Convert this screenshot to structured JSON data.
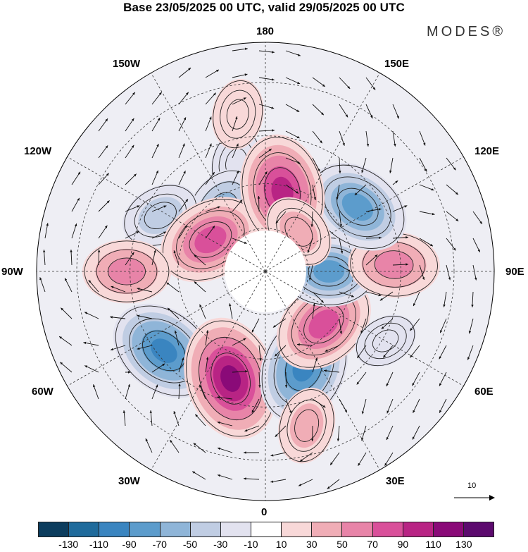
{
  "title": "Base 23/05/2025 00 UTC, valid 29/05/2025 00 UTC",
  "brand": "MODES®",
  "longitude_labels": {
    "lon_180": "180",
    "lon_150e": "150E",
    "lon_120e": "120E",
    "lon_90e": "90E",
    "lon_60e": "60E",
    "lon_30e": "30E",
    "lon_0": "0",
    "lon_30w": "30W",
    "lon_60w": "60W",
    "lon_90w": "90W",
    "lon_120w": "120W",
    "lon_150w": "150W"
  },
  "reference_vector_label": "10",
  "colorbar": {
    "colors": [
      "#0c3d5e",
      "#1f6b9c",
      "#3a85c0",
      "#5c9ccc",
      "#8fb5d8",
      "#c0cde3",
      "#e2e2ef",
      "#ffffff",
      "#f8d8d8",
      "#f0adb6",
      "#e884a8",
      "#d9509a",
      "#b82484",
      "#8a0a78",
      "#5c0a6e"
    ],
    "tick_labels": [
      "-130",
      "-110",
      "-90",
      "-70",
      "-50",
      "-30",
      "-10",
      "10",
      "30",
      "50",
      "70",
      "90",
      "110",
      "130"
    ]
  },
  "anomaly_centers": [
    {
      "lon": -165,
      "lat": 52,
      "value": -20
    },
    {
      "lon": -145,
      "lat": 64,
      "value": -55
    },
    {
      "lon": -118,
      "lat": 50,
      "value": -40
    },
    {
      "lon": -120,
      "lat": 68,
      "value": 85
    },
    {
      "lon": -90,
      "lat": 44,
      "value": 55
    },
    {
      "lon": -52,
      "lat": 47,
      "value": -95
    },
    {
      "lon": -18,
      "lat": 52,
      "value": 115
    },
    {
      "lon": 22,
      "lat": 55,
      "value": -100
    },
    {
      "lon": 15,
      "lat": 38,
      "value": 35
    },
    {
      "lon": 48,
      "lat": 63,
      "value": 85
    },
    {
      "lon": 90,
      "lat": 68,
      "value": -70
    },
    {
      "lon": 93,
      "lat": 47,
      "value": 60
    },
    {
      "lon": 125,
      "lat": 52,
      "value": -85
    },
    {
      "lon": 168,
      "lat": 62,
      "value": 100
    },
    {
      "lon": 140,
      "lat": 72,
      "value": 35
    },
    {
      "lon": 60,
      "lat": 44,
      "value": -15
    },
    {
      "lon": -170,
      "lat": 38,
      "value": 25
    }
  ]
}
